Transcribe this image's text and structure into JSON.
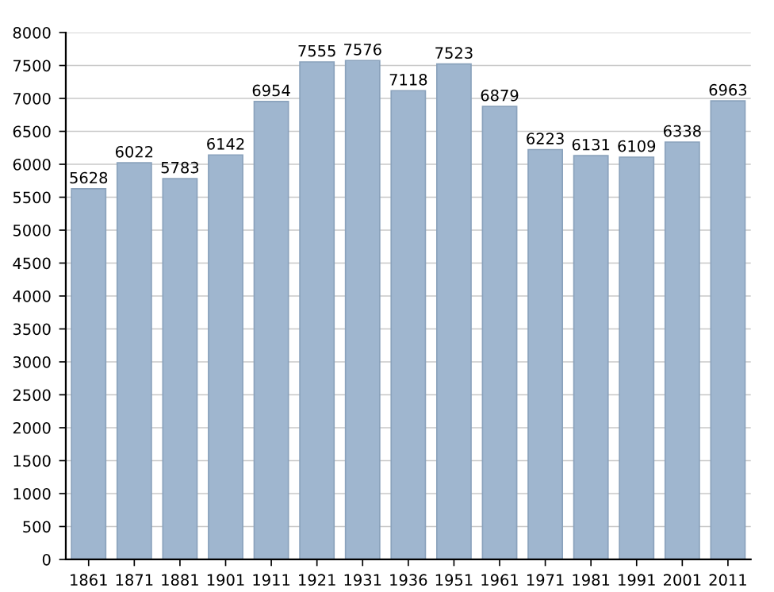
{
  "chart_data": {
    "type": "bar",
    "categories": [
      "1861",
      "1871",
      "1881",
      "1901",
      "1911",
      "1921",
      "1931",
      "1936",
      "1951",
      "1961",
      "1971",
      "1981",
      "1991",
      "2001",
      "2011"
    ],
    "values": [
      5628,
      6022,
      5783,
      6142,
      6954,
      7555,
      7576,
      7118,
      7523,
      6879,
      6223,
      6131,
      6109,
      6338,
      6963
    ],
    "color": "#9fb6cf",
    "ylim": [
      0,
      8000
    ],
    "yticks": [
      0,
      500,
      1000,
      1500,
      2000,
      2500,
      3000,
      3500,
      4000,
      4500,
      5000,
      5500,
      6000,
      6500,
      7000,
      7500,
      8000
    ],
    "grid": "y",
    "data_labels": true
  }
}
